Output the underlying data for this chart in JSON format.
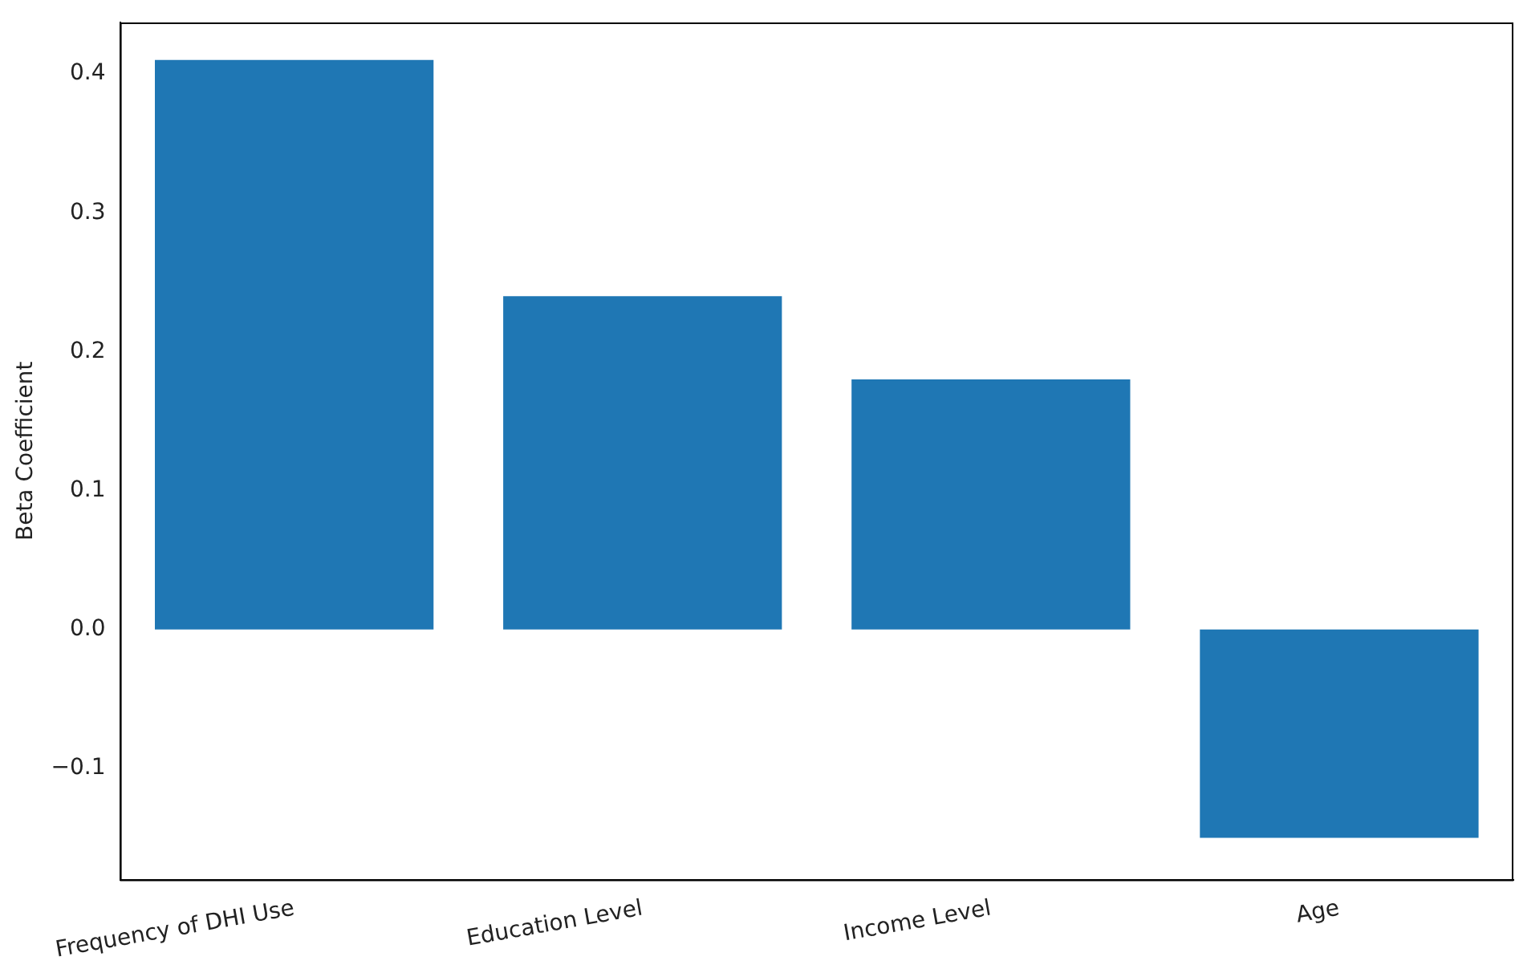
{
  "chart_data": {
    "type": "bar",
    "ylabel": "Beta Coefficient",
    "categories": [
      "Frequency of DHI Use",
      "Education Level",
      "Income Level",
      "Age"
    ],
    "values": [
      0.41,
      0.24,
      0.18,
      -0.15
    ],
    "color": "#1f77b4",
    "ylim": [
      -0.18,
      0.437
    ],
    "yticks": [
      {
        "value": -0.1,
        "label": "−0.1"
      },
      {
        "value": 0,
        "label": "0.0"
      },
      0.1,
      0.2,
      0.3,
      0.4
    ],
    "grid": false,
    "legend": false
  }
}
